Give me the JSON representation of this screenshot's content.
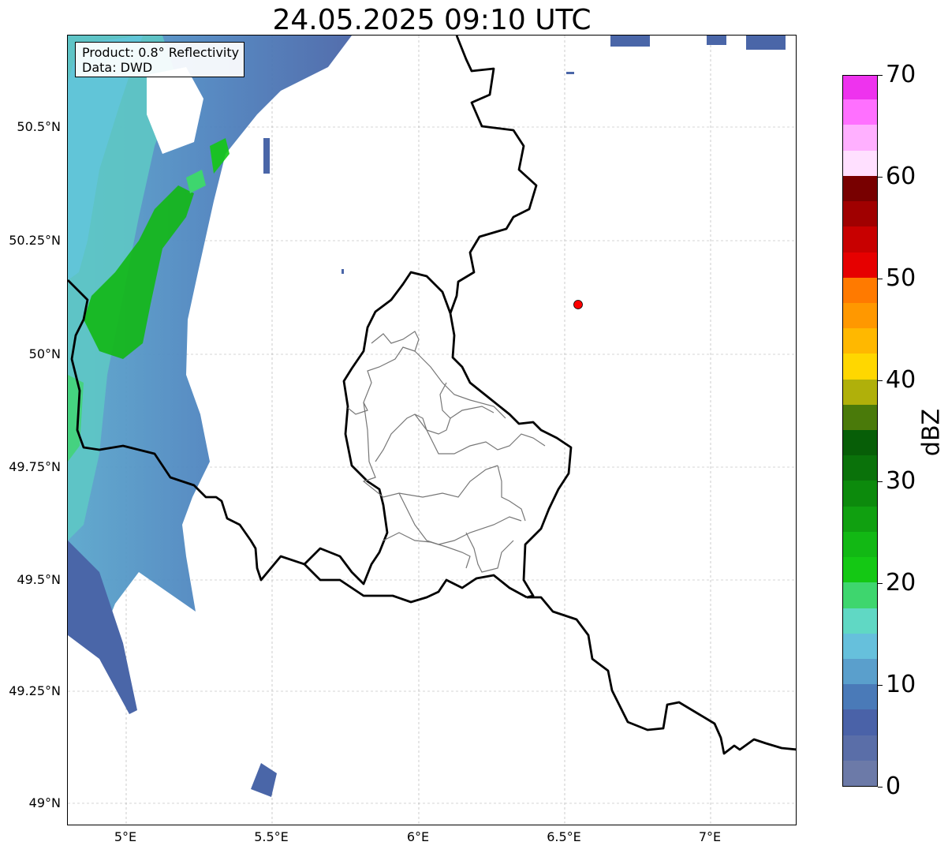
{
  "title": "24.05.2025 09:10 UTC",
  "info": {
    "product": "Product: 0.8° Reflectivity",
    "data_source": "Data: DWD"
  },
  "axes": {
    "y_ticks": [
      "50.5°N",
      "50.25°N",
      "50°N",
      "49.75°N",
      "49.5°N",
      "49.25°N",
      "49°N"
    ],
    "x_ticks": [
      "5°E",
      "5.5°E",
      "6°E",
      "6.5°E",
      "7°E"
    ]
  },
  "colorbar": {
    "label": "dBZ",
    "ticks": [
      "0",
      "10",
      "20",
      "30",
      "40",
      "50",
      "60",
      "70"
    ],
    "colors": [
      "#6c7aa8",
      "#5a6ea8",
      "#4a62a8",
      "#4a7ab8",
      "#5a9fcc",
      "#66c0dc",
      "#60d8c4",
      "#3ed66e",
      "#14c814",
      "#12b814",
      "#10a010",
      "#0c8a0c",
      "#0a720a",
      "#075e07",
      "#4a7a0a",
      "#b0b00a",
      "#ffd700",
      "#ffb800",
      "#ff9800",
      "#ff7a00",
      "#e60000",
      "#c80000",
      "#a00000",
      "#780000",
      "#ffe0ff",
      "#ffb0ff",
      "#ff70ff",
      "#ee33ee"
    ]
  },
  "marker": {
    "name": "radar-site",
    "color": "#ff0000"
  }
}
